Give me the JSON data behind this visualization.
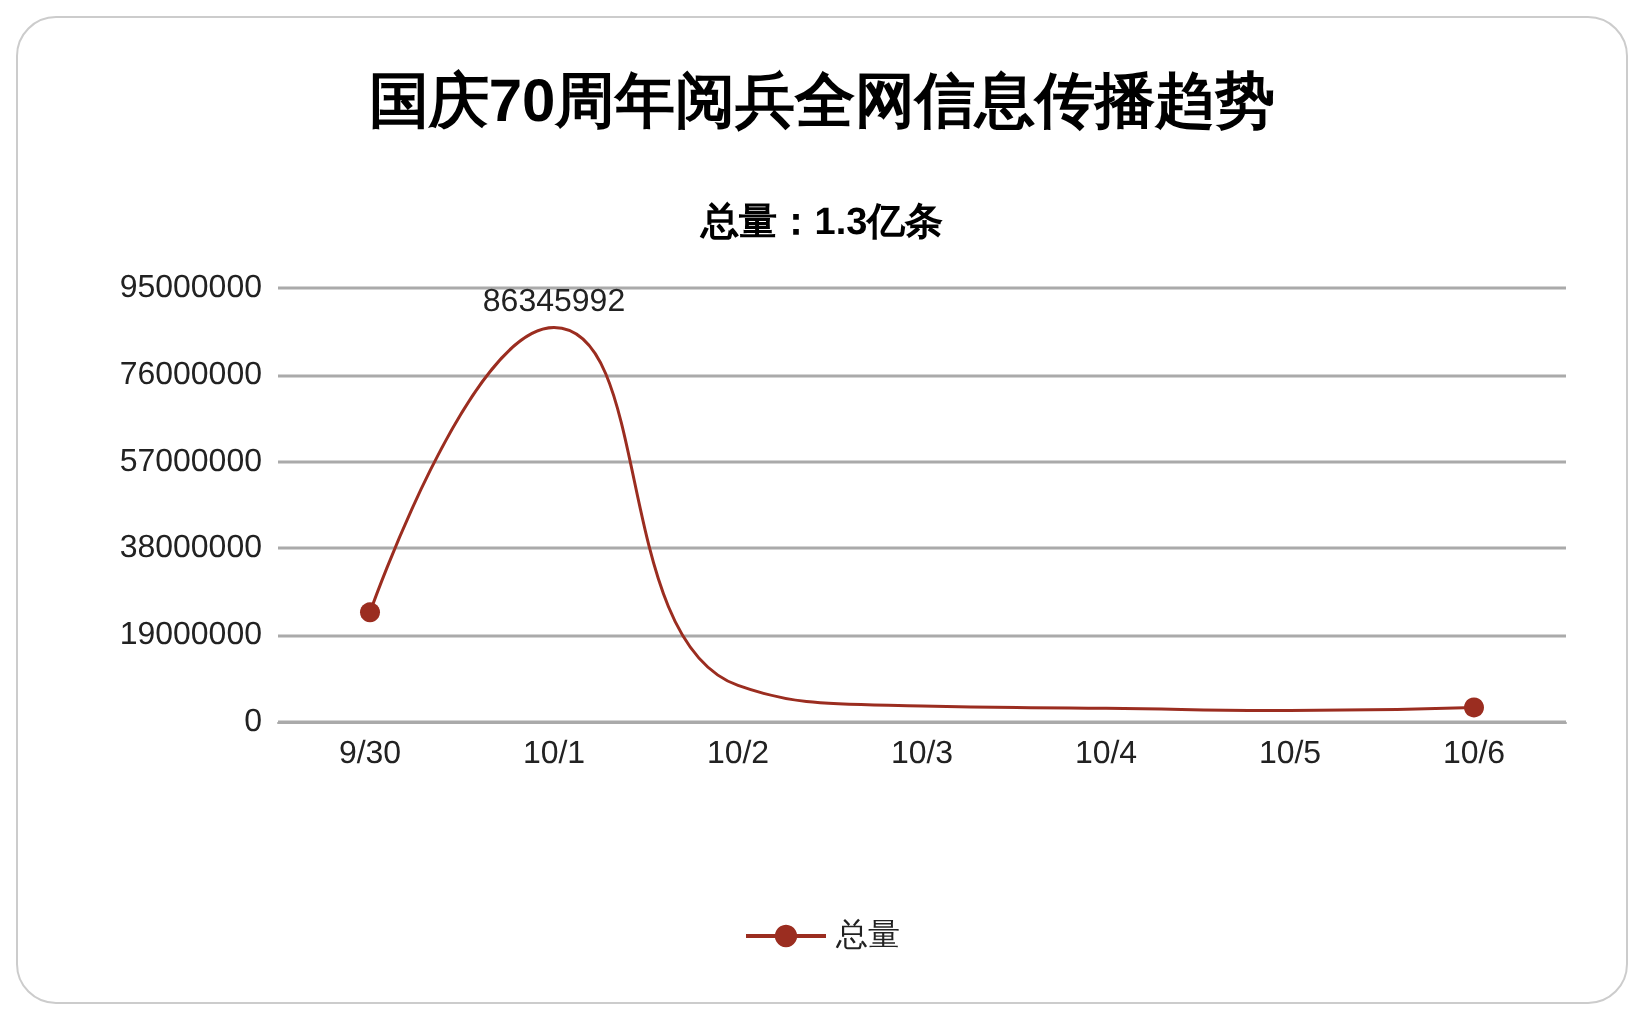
{
  "chart_data": {
    "type": "line",
    "title": "国庆70周年阅兵全网信息传播趋势",
    "subtitle": "总量：1.3亿条",
    "categories": [
      "9/30",
      "10/1",
      "10/2",
      "10/3",
      "10/4",
      "10/5",
      "10/6"
    ],
    "series": [
      {
        "name": "总量",
        "color": "#9b2d20",
        "values": [
          24000000,
          86345992,
          8000000,
          3500000,
          3000000,
          2500000,
          3200000
        ],
        "value_labels": [
          null,
          "86345992",
          null,
          null,
          null,
          null,
          null
        ]
      }
    ],
    "ylim": [
      0,
      95000000
    ],
    "yticks": [
      0,
      19000000,
      38000000,
      57000000,
      76000000,
      95000000
    ],
    "grid": "y",
    "legend": "bottom"
  }
}
